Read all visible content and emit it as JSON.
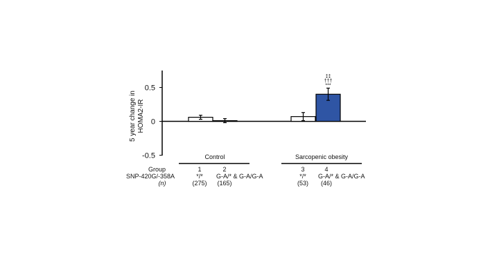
{
  "chart_data": {
    "type": "bar",
    "ylabel_line1": "5 year change in",
    "ylabel_line2": "HOMA2-IR",
    "ylim": [
      -0.5,
      0.7
    ],
    "yticks": [
      {
        "value": 0.5,
        "label": "0.5"
      },
      {
        "value": 0,
        "label": "0"
      },
      {
        "value": -0.5,
        "label": "-0.5"
      }
    ],
    "bars": [
      {
        "group": "1",
        "genotype": "*/*",
        "n": "(275)",
        "value": 0.06,
        "error": 0.03,
        "fill": "#ffffff",
        "annotations": []
      },
      {
        "group": "2",
        "genotype": "G-A/* & G-A/G-A",
        "n": "(165)",
        "value": 0.01,
        "error": 0.03,
        "fill": "#ffffff",
        "annotations": []
      },
      {
        "group": "3",
        "genotype": "*/*",
        "n": "(53)",
        "value": 0.07,
        "error": 0.06,
        "fill": "#ffffff",
        "annotations": []
      },
      {
        "group": "4",
        "genotype": "G-A/* & G-A/G-A",
        "n": "(46)",
        "value": 0.4,
        "error": 0.09,
        "fill": "#2f55a4",
        "annotations": [
          "‡‡",
          "†††",
          "***"
        ]
      }
    ],
    "sections": [
      {
        "label": "Control",
        "bars": [
          0,
          1
        ]
      },
      {
        "label": "Sarcopenic obesity",
        "bars": [
          2,
          3
        ]
      }
    ],
    "row_labels": {
      "group": "Group",
      "genotype": "SNP-420G/-358A",
      "n": "(n)"
    },
    "grid": false,
    "legend": "none"
  }
}
